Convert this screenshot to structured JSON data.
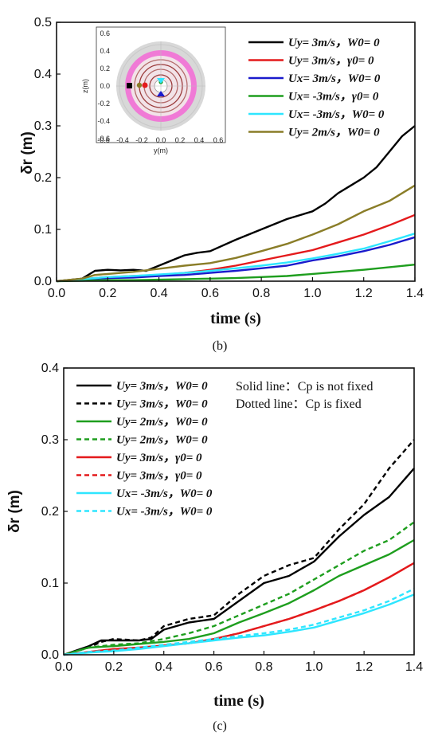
{
  "chart_data": [
    {
      "id": "b",
      "type": "line",
      "caption": "(b)",
      "xlabel": "time (s)",
      "ylabel": "δr (m)",
      "xlim": [
        0.0,
        1.4
      ],
      "ylim": [
        0.0,
        0.5
      ],
      "xticks": [
        "0.0",
        "0.2",
        "0.4",
        "0.6",
        "0.8",
        "1.0",
        "1.2",
        "1.4"
      ],
      "yticks": [
        "0.0",
        "0.1",
        "0.2",
        "0.3",
        "0.4",
        "0.5"
      ],
      "grid": false,
      "legend_position": "top-right",
      "series": [
        {
          "name": "Uy= 3m/s，W0= 0",
          "color": "#000000",
          "dash": "solid",
          "x": [
            0,
            0.1,
            0.15,
            0.2,
            0.25,
            0.3,
            0.35,
            0.4,
            0.45,
            0.5,
            0.55,
            0.6,
            0.7,
            0.8,
            0.9,
            1.0,
            1.05,
            1.1,
            1.15,
            1.2,
            1.25,
            1.3,
            1.35,
            1.4
          ],
          "y": [
            0,
            0.005,
            0.02,
            0.022,
            0.021,
            0.022,
            0.02,
            0.03,
            0.04,
            0.05,
            0.055,
            0.058,
            0.08,
            0.1,
            0.12,
            0.135,
            0.15,
            0.17,
            0.185,
            0.2,
            0.22,
            0.25,
            0.28,
            0.3
          ]
        },
        {
          "name": "Uy= 3m/s，γ0= 0",
          "color": "#e41a1c",
          "dash": "solid",
          "x": [
            0,
            0.1,
            0.2,
            0.3,
            0.4,
            0.5,
            0.6,
            0.7,
            0.8,
            0.9,
            1.0,
            1.1,
            1.2,
            1.3,
            1.4
          ],
          "y": [
            0,
            0.004,
            0.008,
            0.01,
            0.012,
            0.016,
            0.022,
            0.03,
            0.04,
            0.05,
            0.06,
            0.075,
            0.09,
            0.108,
            0.128
          ]
        },
        {
          "name": "Ux= 3m/s，W0= 0",
          "color": "#1a1acc",
          "dash": "solid",
          "x": [
            0,
            0.1,
            0.2,
            0.3,
            0.4,
            0.5,
            0.6,
            0.7,
            0.8,
            0.9,
            1.0,
            1.1,
            1.2,
            1.3,
            1.4
          ],
          "y": [
            0,
            0.003,
            0.006,
            0.007,
            0.01,
            0.012,
            0.016,
            0.02,
            0.025,
            0.03,
            0.04,
            0.048,
            0.058,
            0.07,
            0.085
          ]
        },
        {
          "name": "Ux= -3m/s，γ0= 0",
          "color": "#1e9e1e",
          "dash": "solid",
          "x": [
            0,
            0.1,
            0.2,
            0.3,
            0.4,
            0.5,
            0.6,
            0.7,
            0.8,
            0.9,
            1.0,
            1.1,
            1.2,
            1.3,
            1.4
          ],
          "y": [
            0,
            0.001,
            0.002,
            0.002,
            0.003,
            0.004,
            0.005,
            0.006,
            0.008,
            0.01,
            0.014,
            0.018,
            0.022,
            0.027,
            0.032
          ]
        },
        {
          "name": "Ux= -3m/s，W0= 0",
          "color": "#2ee6ff",
          "dash": "solid",
          "x": [
            0,
            0.1,
            0.2,
            0.3,
            0.4,
            0.5,
            0.6,
            0.7,
            0.8,
            0.9,
            1.0,
            1.1,
            1.2,
            1.3,
            1.4
          ],
          "y": [
            0,
            0.004,
            0.008,
            0.01,
            0.013,
            0.016,
            0.02,
            0.025,
            0.03,
            0.036,
            0.044,
            0.053,
            0.063,
            0.077,
            0.092
          ]
        },
        {
          "name": "Uy= 2m/s，W0= 0",
          "color": "#8a7d28",
          "dash": "solid",
          "x": [
            0,
            0.1,
            0.15,
            0.2,
            0.3,
            0.4,
            0.5,
            0.6,
            0.7,
            0.8,
            0.9,
            1.0,
            1.1,
            1.2,
            1.3,
            1.4
          ],
          "y": [
            0,
            0.005,
            0.012,
            0.014,
            0.018,
            0.024,
            0.03,
            0.035,
            0.045,
            0.058,
            0.072,
            0.09,
            0.11,
            0.135,
            0.155,
            0.185
          ]
        }
      ],
      "inset": {
        "xlabel": "y(m)",
        "ylabel": "z(m)",
        "xticks": [
          "-0.6",
          "-0.4",
          "-0.2",
          "0.0",
          "0.2",
          "0.4",
          "0.6"
        ],
        "yticks": [
          "-0.6",
          "-0.4",
          "-0.2",
          "0.0",
          "0.2",
          "0.4",
          "0.6"
        ]
      }
    },
    {
      "id": "c",
      "type": "line",
      "caption": "(c)",
      "xlabel": "time (s)",
      "ylabel": "δr (m)",
      "xlim": [
        0.0,
        1.4
      ],
      "ylim": [
        0.0,
        0.4
      ],
      "xticks": [
        "0.0",
        "0.2",
        "0.4",
        "0.6",
        "0.8",
        "1.0",
        "1.2",
        "1.4"
      ],
      "yticks": [
        "0.0",
        "0.1",
        "0.2",
        "0.3",
        "0.4"
      ],
      "grid": false,
      "legend_position": "top-left",
      "notes": [
        "Solid line：Cp is not fixed",
        "Dotted line：Cp is fixed"
      ],
      "series": [
        {
          "name": "Uy= 3m/s，W0= 0",
          "color": "#000000",
          "dash": "solid",
          "x": [
            0,
            0.1,
            0.15,
            0.2,
            0.3,
            0.35,
            0.4,
            0.5,
            0.6,
            0.7,
            0.8,
            0.9,
            1.0,
            1.1,
            1.2,
            1.3,
            1.4
          ],
          "y": [
            0,
            0.012,
            0.02,
            0.02,
            0.02,
            0.022,
            0.035,
            0.045,
            0.05,
            0.075,
            0.1,
            0.11,
            0.13,
            0.165,
            0.195,
            0.22,
            0.26
          ]
        },
        {
          "name": "Uy= 3m/s，W0= 0",
          "color": "#000000",
          "dash": "dashed",
          "x": [
            0,
            0.1,
            0.15,
            0.2,
            0.3,
            0.35,
            0.4,
            0.5,
            0.6,
            0.7,
            0.8,
            0.9,
            1.0,
            1.1,
            1.2,
            1.3,
            1.4
          ],
          "y": [
            0,
            0.01,
            0.018,
            0.022,
            0.02,
            0.024,
            0.04,
            0.05,
            0.055,
            0.085,
            0.11,
            0.125,
            0.135,
            0.175,
            0.21,
            0.26,
            0.3
          ]
        },
        {
          "name": "Uy= 2m/s，W0= 0",
          "color": "#1e9e1e",
          "dash": "solid",
          "x": [
            0,
            0.1,
            0.2,
            0.3,
            0.4,
            0.5,
            0.6,
            0.7,
            0.8,
            0.9,
            1.0,
            1.1,
            1.2,
            1.3,
            1.4
          ],
          "y": [
            0,
            0.01,
            0.012,
            0.015,
            0.018,
            0.022,
            0.03,
            0.045,
            0.058,
            0.072,
            0.09,
            0.11,
            0.125,
            0.14,
            0.16
          ]
        },
        {
          "name": "Uy= 2m/s，W0= 0",
          "color": "#1e9e1e",
          "dash": "dashed",
          "x": [
            0,
            0.1,
            0.2,
            0.3,
            0.4,
            0.5,
            0.6,
            0.7,
            0.8,
            0.9,
            1.0,
            1.1,
            1.2,
            1.3,
            1.4
          ],
          "y": [
            0,
            0.01,
            0.014,
            0.016,
            0.022,
            0.03,
            0.04,
            0.055,
            0.07,
            0.085,
            0.105,
            0.125,
            0.145,
            0.16,
            0.185
          ]
        },
        {
          "name": "Uy= 3m/s，γ0= 0",
          "color": "#e41a1c",
          "dash": "solid",
          "x": [
            0,
            0.1,
            0.2,
            0.3,
            0.4,
            0.5,
            0.6,
            0.7,
            0.8,
            0.9,
            1.0,
            1.1,
            1.2,
            1.3,
            1.4
          ],
          "y": [
            0,
            0.004,
            0.008,
            0.01,
            0.013,
            0.016,
            0.022,
            0.03,
            0.04,
            0.05,
            0.062,
            0.075,
            0.09,
            0.108,
            0.128
          ]
        },
        {
          "name": "Uy= 3m/s，γ0= 0",
          "color": "#e41a1c",
          "dash": "dashed",
          "x": [
            0,
            0.1,
            0.2,
            0.3,
            0.4,
            0.5,
            0.6,
            0.7,
            0.8,
            0.9,
            1.0,
            1.1,
            1.2,
            1.3,
            1.4
          ],
          "y": [
            0,
            0.004,
            0.008,
            0.01,
            0.013,
            0.016,
            0.022,
            0.03,
            0.04,
            0.05,
            0.062,
            0.075,
            0.09,
            0.108,
            0.128
          ]
        },
        {
          "name": "Ux= -3m/s，W0= 0",
          "color": "#2ee6ff",
          "dash": "solid",
          "x": [
            0,
            0.1,
            0.2,
            0.3,
            0.4,
            0.5,
            0.6,
            0.7,
            0.8,
            0.9,
            1.0,
            1.1,
            1.2,
            1.3,
            1.4
          ],
          "y": [
            0,
            0.003,
            0.005,
            0.008,
            0.012,
            0.016,
            0.02,
            0.024,
            0.027,
            0.032,
            0.038,
            0.048,
            0.058,
            0.07,
            0.084
          ]
        },
        {
          "name": "Ux= -3m/s，W0= 0",
          "color": "#2ee6ff",
          "dash": "dashed",
          "x": [
            0,
            0.1,
            0.2,
            0.3,
            0.4,
            0.5,
            0.6,
            0.7,
            0.8,
            0.9,
            1.0,
            1.1,
            1.2,
            1.3,
            1.4
          ],
          "y": [
            0,
            0.004,
            0.006,
            0.01,
            0.014,
            0.018,
            0.022,
            0.026,
            0.03,
            0.035,
            0.042,
            0.052,
            0.062,
            0.075,
            0.092
          ]
        }
      ]
    }
  ]
}
